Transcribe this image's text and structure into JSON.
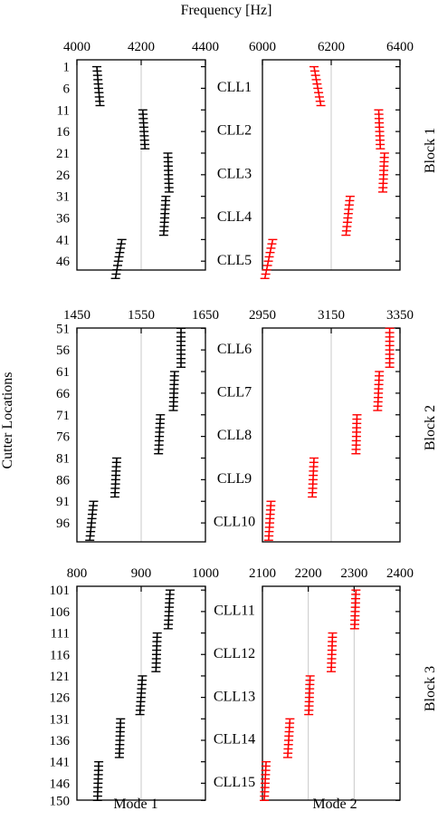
{
  "figure": {
    "top_axis_title": "Frequency [Hz]",
    "y_axis_title": "Cutter Locations",
    "bottom_labels": [
      "Mode 1",
      "Mode 2"
    ],
    "block_labels": [
      "Block 1",
      "Block 2",
      "Block 3"
    ]
  },
  "colors": {
    "mode1": "#000000",
    "mode2": "#ff0000",
    "grid": "#c8c8c8"
  },
  "chart_data": [
    {
      "type": "scatter",
      "block": "Block 1",
      "mode": "Mode 1",
      "xlim": [
        4000,
        4400
      ],
      "xticks": [
        4000,
        4200,
        4400
      ],
      "ylim": [
        1,
        50
      ],
      "yticks": [
        1,
        6,
        11,
        16,
        21,
        26,
        31,
        36,
        41,
        46
      ],
      "segments": [
        {
          "label": "CLL1",
          "from": 1,
          "to": 10,
          "x_start": 4062,
          "x_end": 4072
        },
        {
          "label": "CLL2",
          "from": 11,
          "to": 20,
          "x_start": 4205,
          "x_end": 4212
        },
        {
          "label": "CLL3",
          "from": 21,
          "to": 30,
          "x_start": 4283,
          "x_end": 4287
        },
        {
          "label": "CLL4",
          "from": 31,
          "to": 40,
          "x_start": 4277,
          "x_end": 4270
        },
        {
          "label": "CLL5",
          "from": 41,
          "to": 50,
          "x_start": 4140,
          "x_end": 4120
        }
      ]
    },
    {
      "type": "scatter",
      "block": "Block 1",
      "mode": "Mode 2",
      "xlim": [
        6000,
        6400
      ],
      "xticks": [
        6000,
        6200,
        6400
      ],
      "ylim": [
        1,
        50
      ],
      "yticks": [
        1,
        6,
        11,
        16,
        21,
        26,
        31,
        36,
        41,
        46
      ],
      "segments": [
        {
          "label": "CLL1",
          "from": 1,
          "to": 10,
          "x_start": 6150,
          "x_end": 6170
        },
        {
          "label": "CLL2",
          "from": 11,
          "to": 20,
          "x_start": 6338,
          "x_end": 6343
        },
        {
          "label": "CLL3",
          "from": 21,
          "to": 30,
          "x_start": 6355,
          "x_end": 6350
        },
        {
          "label": "CLL4",
          "from": 31,
          "to": 40,
          "x_start": 6255,
          "x_end": 6243
        },
        {
          "label": "CLL5",
          "from": 41,
          "to": 50,
          "x_start": 6030,
          "x_end": 6007
        }
      ]
    },
    {
      "type": "scatter",
      "block": "Block 2",
      "mode": "Mode 1",
      "xlim": [
        1450,
        1650
      ],
      "xticks": [
        1450,
        1550,
        1650
      ],
      "ylim": [
        51,
        100
      ],
      "yticks": [
        51,
        56,
        61,
        66,
        71,
        76,
        81,
        86,
        91,
        96
      ],
      "segments": [
        {
          "label": "CLL6",
          "from": 51,
          "to": 60,
          "x_start": 1612,
          "x_end": 1612
        },
        {
          "label": "CLL7",
          "from": 61,
          "to": 70,
          "x_start": 1602,
          "x_end": 1600
        },
        {
          "label": "CLL8",
          "from": 71,
          "to": 80,
          "x_start": 1580,
          "x_end": 1577
        },
        {
          "label": "CLL9",
          "from": 81,
          "to": 90,
          "x_start": 1512,
          "x_end": 1509
        },
        {
          "label": "CLL10",
          "from": 91,
          "to": 100,
          "x_start": 1476,
          "x_end": 1470
        }
      ]
    },
    {
      "type": "scatter",
      "block": "Block 2",
      "mode": "Mode 2",
      "xlim": [
        2950,
        3350
      ],
      "xticks": [
        2950,
        3150,
        3350
      ],
      "ylim": [
        51,
        100
      ],
      "yticks": [
        51,
        56,
        61,
        66,
        71,
        76,
        81,
        86,
        91,
        96
      ],
      "segments": [
        {
          "label": "CLL6",
          "from": 51,
          "to": 60,
          "x_start": 3320,
          "x_end": 3320
        },
        {
          "label": "CLL7",
          "from": 61,
          "to": 70,
          "x_start": 3290,
          "x_end": 3285
        },
        {
          "label": "CLL8",
          "from": 71,
          "to": 80,
          "x_start": 3225,
          "x_end": 3222
        },
        {
          "label": "CLL9",
          "from": 81,
          "to": 90,
          "x_start": 3100,
          "x_end": 3095
        },
        {
          "label": "CLL10",
          "from": 91,
          "to": 100,
          "x_start": 2975,
          "x_end": 2968
        }
      ]
    },
    {
      "type": "scatter",
      "block": "Block 3",
      "mode": "Mode 1",
      "xlim": [
        800,
        1000
      ],
      "xticks": [
        800,
        900,
        1000
      ],
      "ylim": [
        101,
        150
      ],
      "yticks": [
        101,
        106,
        111,
        116,
        121,
        126,
        131,
        136,
        141,
        146,
        150
      ],
      "segments": [
        {
          "label": "CLL11",
          "from": 101,
          "to": 110,
          "x_start": 945,
          "x_end": 942
        },
        {
          "label": "CLL12",
          "from": 111,
          "to": 120,
          "x_start": 925,
          "x_end": 923
        },
        {
          "label": "CLL13",
          "from": 121,
          "to": 130,
          "x_start": 902,
          "x_end": 898
        },
        {
          "label": "CLL14",
          "from": 131,
          "to": 140,
          "x_start": 868,
          "x_end": 866
        },
        {
          "label": "CLL15",
          "from": 141,
          "to": 150,
          "x_start": 834,
          "x_end": 832
        }
      ]
    },
    {
      "type": "scatter",
      "block": "Block 3",
      "mode": "Mode 2",
      "xlim": [
        2100,
        2400
      ],
      "xticks": [
        2100,
        2200,
        2300,
        2400
      ],
      "ylim": [
        101,
        150
      ],
      "yticks": [
        101,
        106,
        111,
        116,
        121,
        126,
        131,
        136,
        141,
        146,
        150
      ],
      "segments": [
        {
          "label": "CLL11",
          "from": 101,
          "to": 110,
          "x_start": 2304,
          "x_end": 2301
        },
        {
          "label": "CLL12",
          "from": 111,
          "to": 120,
          "x_start": 2253,
          "x_end": 2250
        },
        {
          "label": "CLL13",
          "from": 121,
          "to": 130,
          "x_start": 2204,
          "x_end": 2201
        },
        {
          "label": "CLL14",
          "from": 131,
          "to": 140,
          "x_start": 2160,
          "x_end": 2155
        },
        {
          "label": "CLL15",
          "from": 141,
          "to": 150,
          "x_start": 2108,
          "x_end": 2104
        }
      ]
    }
  ]
}
